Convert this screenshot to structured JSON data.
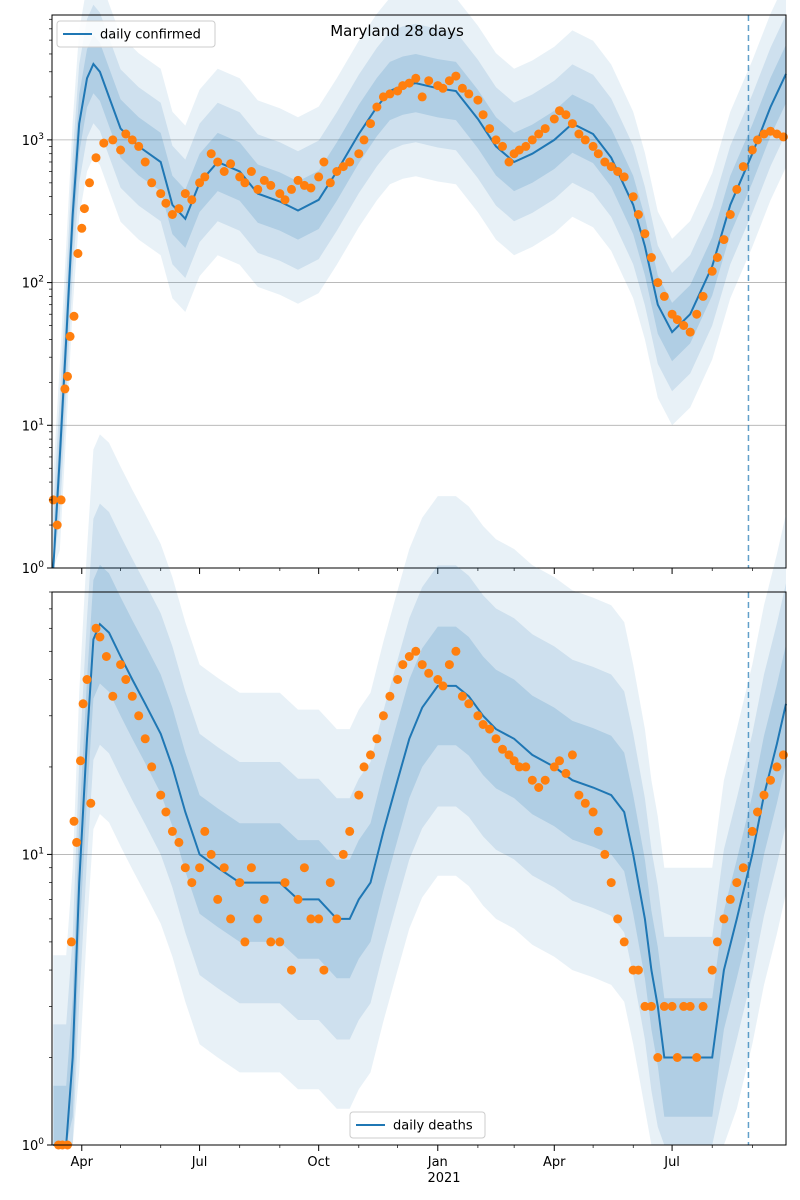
{
  "figure": {
    "title": "Maryland 28 days",
    "shared_x_axis": {
      "tick_labels": [
        "Apr",
        "Jul",
        "Oct",
        "Jan",
        "Apr",
        "Jul"
      ],
      "tick_dates": [
        "2020-04-01",
        "2020-07-01",
        "2020-10-01",
        "2021-01-01",
        "2021-04-01",
        "2021-07-01"
      ],
      "year_label": "2021",
      "range": [
        "2020-03-09",
        "2021-09-27"
      ]
    },
    "colors": {
      "line": "#1f77b4",
      "band": "#1f77b4",
      "points": "#ff7f0e",
      "grid": "#b0b0b0",
      "vline": "#1f77b4"
    }
  },
  "chart_data": [
    {
      "type": "line",
      "panel": "top",
      "title": "Maryland 28 days",
      "yscale": "log",
      "ylim": [
        1,
        7500
      ],
      "ytick_labels": [
        "10^0",
        "10^1",
        "10^2",
        "10^3"
      ],
      "legend": {
        "placement": "top-left",
        "entries": [
          "daily confirmed"
        ]
      },
      "grid": "horizontal",
      "forecast_start": "2021-08-29",
      "series": [
        {
          "name": "daily confirmed",
          "x": [
            "2020-03-10",
            "2020-03-15",
            "2020-03-20",
            "2020-03-25",
            "2020-03-30",
            "2020-04-05",
            "2020-04-10",
            "2020-04-15",
            "2020-04-22",
            "2020-05-01",
            "2020-05-15",
            "2020-06-01",
            "2020-06-10",
            "2020-06-20",
            "2020-07-01",
            "2020-07-15",
            "2020-08-01",
            "2020-08-15",
            "2020-09-01",
            "2020-09-15",
            "2020-10-01",
            "2020-10-15",
            "2020-11-01",
            "2020-11-15",
            "2020-11-25",
            "2020-12-05",
            "2020-12-15",
            "2021-01-01",
            "2021-01-15",
            "2021-02-01",
            "2021-02-15",
            "2021-03-01",
            "2021-03-15",
            "2021-04-01",
            "2021-04-15",
            "2021-05-01",
            "2021-05-15",
            "2021-06-01",
            "2021-06-10",
            "2021-06-20",
            "2021-07-01",
            "2021-07-15",
            "2021-08-01",
            "2021-08-15",
            "2021-09-01",
            "2021-09-15",
            "2021-09-27"
          ],
          "y": [
            1,
            6,
            40,
            300,
            1300,
            2700,
            3400,
            3000,
            2000,
            1200,
            900,
            700,
            350,
            280,
            500,
            700,
            600,
            420,
            370,
            320,
            380,
            600,
            1100,
            1700,
            2200,
            2400,
            2500,
            2300,
            2200,
            1400,
            900,
            700,
            800,
            1000,
            1300,
            1100,
            750,
            350,
            180,
            70,
            45,
            60,
            130,
            350,
            800,
            1700,
            2900
          ]
        }
      ],
      "observed": {
        "x": [
          "2020-03-10",
          "2020-03-13",
          "2020-03-16",
          "2020-03-19",
          "2020-03-21",
          "2020-03-23",
          "2020-03-26",
          "2020-03-29",
          "2020-04-01",
          "2020-04-03",
          "2020-04-07",
          "2020-04-12",
          "2020-04-18",
          "2020-04-25",
          "2020-05-01",
          "2020-05-05",
          "2020-05-10",
          "2020-05-15",
          "2020-05-20",
          "2020-05-25",
          "2020-06-01",
          "2020-06-05",
          "2020-06-10",
          "2020-06-15",
          "2020-06-20",
          "2020-06-25",
          "2020-07-01",
          "2020-07-05",
          "2020-07-10",
          "2020-07-15",
          "2020-07-20",
          "2020-07-25",
          "2020-08-01",
          "2020-08-05",
          "2020-08-10",
          "2020-08-15",
          "2020-08-20",
          "2020-08-25",
          "2020-09-01",
          "2020-09-05",
          "2020-09-10",
          "2020-09-15",
          "2020-09-20",
          "2020-09-25",
          "2020-10-01",
          "2020-10-05",
          "2020-10-10",
          "2020-10-15",
          "2020-10-20",
          "2020-10-25",
          "2020-11-01",
          "2020-11-05",
          "2020-11-10",
          "2020-11-15",
          "2020-11-20",
          "2020-11-25",
          "2020-12-01",
          "2020-12-05",
          "2020-12-10",
          "2020-12-15",
          "2020-12-20",
          "2020-12-25",
          "2021-01-01",
          "2021-01-05",
          "2021-01-10",
          "2021-01-15",
          "2021-01-20",
          "2021-01-25",
          "2021-02-01",
          "2021-02-05",
          "2021-02-10",
          "2021-02-15",
          "2021-02-20",
          "2021-02-25",
          "2021-03-01",
          "2021-03-05",
          "2021-03-10",
          "2021-03-15",
          "2021-03-20",
          "2021-03-25",
          "2021-04-01",
          "2021-04-05",
          "2021-04-10",
          "2021-04-15",
          "2021-04-20",
          "2021-04-25",
          "2021-05-01",
          "2021-05-05",
          "2021-05-10",
          "2021-05-15",
          "2021-05-20",
          "2021-05-25",
          "2021-06-01",
          "2021-06-05",
          "2021-06-10",
          "2021-06-15",
          "2021-06-20",
          "2021-06-25",
          "2021-07-01",
          "2021-07-05",
          "2021-07-10",
          "2021-07-15",
          "2021-07-20",
          "2021-07-25",
          "2021-08-01",
          "2021-08-05",
          "2021-08-10",
          "2021-08-15",
          "2021-08-20",
          "2021-08-25",
          "2021-09-01",
          "2021-09-05",
          "2021-09-10",
          "2021-09-15",
          "2021-09-20",
          "2021-09-25"
        ],
        "y": [
          3,
          2,
          3,
          18,
          22,
          42,
          58,
          160,
          240,
          330,
          500,
          750,
          950,
          1000,
          850,
          1100,
          1000,
          900,
          700,
          500,
          420,
          360,
          300,
          330,
          420,
          380,
          500,
          550,
          800,
          700,
          600,
          680,
          550,
          500,
          600,
          450,
          520,
          480,
          420,
          380,
          450,
          520,
          480,
          460,
          550,
          700,
          500,
          600,
          650,
          700,
          800,
          1000,
          1300,
          1700,
          2000,
          2100,
          2200,
          2400,
          2500,
          2700,
          2000,
          2600,
          2400,
          2300,
          2600,
          2800,
          2300,
          2100,
          1900,
          1500,
          1200,
          1000,
          900,
          700,
          800,
          850,
          900,
          1000,
          1100,
          1200,
          1400,
          1600,
          1500,
          1300,
          1100,
          1000,
          900,
          800,
          700,
          650,
          600,
          550,
          400,
          300,
          220,
          150,
          100,
          80,
          60,
          55,
          50,
          45,
          60,
          80,
          120,
          150,
          200,
          300,
          450,
          650,
          850,
          1000,
          1100,
          1150,
          1100,
          1050
        ]
      }
    },
    {
      "type": "line",
      "panel": "bottom",
      "yscale": "log",
      "ylim": [
        1,
        80
      ],
      "ytick_labels": [
        "10^0",
        "10^1"
      ],
      "legend": {
        "placement": "bottom-center",
        "entries": [
          "daily deaths"
        ]
      },
      "grid": "horizontal",
      "forecast_start": "2021-08-29",
      "series": [
        {
          "name": "daily deaths",
          "x": [
            "2020-03-10",
            "2020-03-20",
            "2020-03-25",
            "2020-03-30",
            "2020-04-05",
            "2020-04-10",
            "2020-04-15",
            "2020-04-22",
            "2020-05-01",
            "2020-05-10",
            "2020-05-20",
            "2020-06-01",
            "2020-06-10",
            "2020-06-20",
            "2020-07-01",
            "2020-07-15",
            "2020-08-01",
            "2020-08-15",
            "2020-09-01",
            "2020-09-15",
            "2020-10-01",
            "2020-10-15",
            "2020-10-25",
            "2020-11-01",
            "2020-11-10",
            "2020-11-20",
            "2020-12-01",
            "2020-12-10",
            "2020-12-20",
            "2021-01-01",
            "2021-01-15",
            "2021-01-25",
            "2021-02-05",
            "2021-02-15",
            "2021-03-01",
            "2021-03-15",
            "2021-04-01",
            "2021-04-15",
            "2021-05-01",
            "2021-05-15",
            "2021-05-25",
            "2021-06-01",
            "2021-06-10",
            "2021-06-15",
            "2021-06-20",
            "2021-06-25",
            "2021-07-01",
            "2021-07-10",
            "2021-07-20",
            "2021-07-25",
            "2021-08-01",
            "2021-08-10",
            "2021-08-20",
            "2021-09-01",
            "2021-09-10",
            "2021-09-20",
            "2021-09-27"
          ],
          "y": [
            1,
            1,
            2,
            8,
            25,
            55,
            62,
            58,
            48,
            40,
            33,
            26,
            20,
            14,
            10,
            9,
            8,
            8,
            8,
            7,
            7,
            6,
            6,
            7,
            8,
            12,
            18,
            25,
            32,
            38,
            38,
            35,
            30,
            27,
            25,
            22,
            20,
            18,
            17,
            16,
            14,
            10,
            6,
            4,
            3,
            2,
            2,
            2,
            2,
            2,
            2,
            4,
            6,
            10,
            16,
            24,
            33
          ]
        }
      ],
      "observed": {
        "x": [
          "2020-03-14",
          "2020-03-17",
          "2020-03-21",
          "2020-03-24",
          "2020-03-26",
          "2020-03-28",
          "2020-03-31",
          "2020-04-02",
          "2020-04-05",
          "2020-04-08",
          "2020-04-12",
          "2020-04-15",
          "2020-04-20",
          "2020-04-25",
          "2020-05-01",
          "2020-05-05",
          "2020-05-10",
          "2020-05-15",
          "2020-05-20",
          "2020-05-25",
          "2020-06-01",
          "2020-06-05",
          "2020-06-10",
          "2020-06-15",
          "2020-06-20",
          "2020-06-25",
          "2020-07-01",
          "2020-07-05",
          "2020-07-10",
          "2020-07-15",
          "2020-07-20",
          "2020-07-25",
          "2020-08-01",
          "2020-08-05",
          "2020-08-10",
          "2020-08-15",
          "2020-08-20",
          "2020-08-25",
          "2020-09-01",
          "2020-09-05",
          "2020-09-10",
          "2020-09-15",
          "2020-09-20",
          "2020-09-25",
          "2020-10-01",
          "2020-10-05",
          "2020-10-10",
          "2020-10-15",
          "2020-10-20",
          "2020-10-25",
          "2020-11-01",
          "2020-11-05",
          "2020-11-10",
          "2020-11-15",
          "2020-11-20",
          "2020-11-25",
          "2020-12-01",
          "2020-12-05",
          "2020-12-10",
          "2020-12-15",
          "2020-12-20",
          "2020-12-25",
          "2021-01-01",
          "2021-01-05",
          "2021-01-10",
          "2021-01-15",
          "2021-01-20",
          "2021-01-25",
          "2021-02-01",
          "2021-02-05",
          "2021-02-10",
          "2021-02-15",
          "2021-02-20",
          "2021-02-25",
          "2021-03-01",
          "2021-03-05",
          "2021-03-10",
          "2021-03-15",
          "2021-03-20",
          "2021-03-25",
          "2021-04-01",
          "2021-04-05",
          "2021-04-10",
          "2021-04-15",
          "2021-04-20",
          "2021-04-25",
          "2021-05-01",
          "2021-05-05",
          "2021-05-10",
          "2021-05-15",
          "2021-05-20",
          "2021-05-25",
          "2021-06-01",
          "2021-06-05",
          "2021-06-10",
          "2021-06-15",
          "2021-06-20",
          "2021-06-25",
          "2021-07-01",
          "2021-07-05",
          "2021-07-10",
          "2021-07-15",
          "2021-07-20",
          "2021-07-25",
          "2021-08-01",
          "2021-08-05",
          "2021-08-10",
          "2021-08-15",
          "2021-08-20",
          "2021-08-25",
          "2021-09-01",
          "2021-09-05",
          "2021-09-10",
          "2021-09-15",
          "2021-09-20",
          "2021-09-25"
        ],
        "y": [
          1,
          1,
          1,
          5,
          13,
          11,
          21,
          33,
          40,
          15,
          60,
          56,
          48,
          35,
          45,
          40,
          35,
          30,
          25,
          20,
          16,
          14,
          12,
          11,
          9,
          8,
          9,
          12,
          10,
          7,
          9,
          6,
          8,
          5,
          9,
          6,
          7,
          5,
          5,
          8,
          4,
          7,
          9,
          6,
          6,
          4,
          8,
          6,
          10,
          12,
          16,
          20,
          22,
          25,
          30,
          35,
          40,
          45,
          48,
          50,
          45,
          42,
          40,
          38,
          45,
          50,
          35,
          33,
          30,
          28,
          27,
          25,
          23,
          22,
          21,
          20,
          20,
          18,
          17,
          18,
          20,
          21,
          19,
          22,
          16,
          15,
          14,
          12,
          10,
          8,
          6,
          5,
          4,
          4,
          3,
          3,
          2,
          3,
          3,
          2,
          3,
          3,
          2,
          3,
          4,
          5,
          6,
          7,
          8,
          9,
          12,
          14,
          16,
          18,
          20,
          22
        ]
      }
    }
  ]
}
